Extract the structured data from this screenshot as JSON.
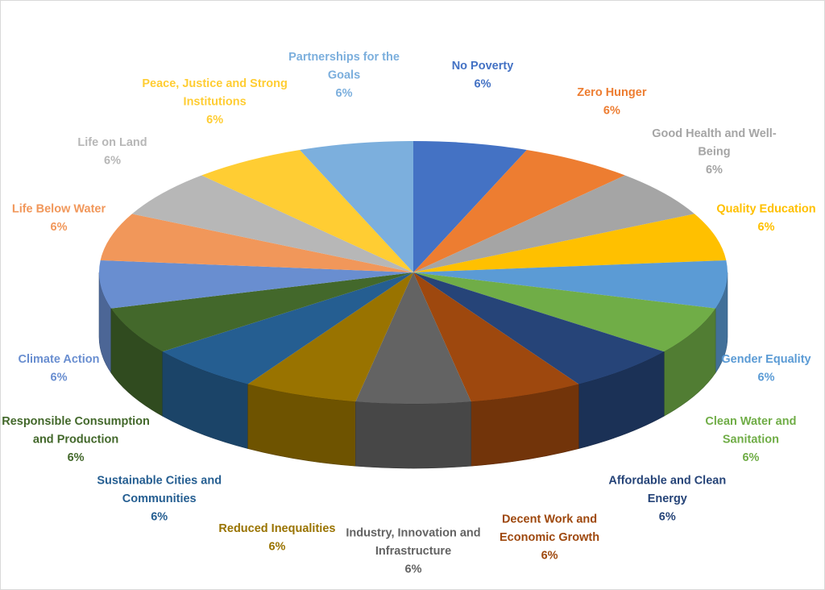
{
  "chart_data": {
    "type": "pie",
    "style": "3d-exploded-none",
    "categories": [
      "No Poverty",
      "Zero Hunger",
      "Good Health and Well-Being",
      "Quality Education",
      "Gender Equality",
      "Clean Water and Sanitation",
      "Affordable and Clean Energy",
      "Decent Work and Economic Growth",
      "Industry, Innovation and Infrastructure",
      "Reduced Inequalities",
      "Sustainable Cities and Communities",
      "Responsible Consumption and Production",
      "Climate Action",
      "Life Below Water",
      "Life on Land",
      "Peace, Justice and Strong Institutions",
      "Partnerships for the Goals"
    ],
    "values": [
      6,
      6,
      6,
      6,
      6,
      6,
      6,
      6,
      6,
      6,
      6,
      6,
      6,
      6,
      6,
      6,
      6
    ],
    "value_labels": [
      "6%",
      "6%",
      "6%",
      "6%",
      "6%",
      "6%",
      "6%",
      "6%",
      "6%",
      "6%",
      "6%",
      "6%",
      "6%",
      "6%",
      "6%",
      "6%",
      "6%"
    ],
    "label_lines": [
      [
        "No Poverty"
      ],
      [
        "Zero Hunger"
      ],
      [
        "Good Health and Well-",
        "Being"
      ],
      [
        "Quality Education"
      ],
      [
        "Gender Equality"
      ],
      [
        "Clean Water and",
        "Sanitation"
      ],
      [
        "Affordable and Clean",
        "Energy"
      ],
      [
        "Decent Work and",
        "Economic Growth"
      ],
      [
        "Industry, Innovation and",
        "Infrastructure"
      ],
      [
        "Reduced Inequalities"
      ],
      [
        "Sustainable Cities and",
        "Communities"
      ],
      [
        "Responsible Consumption",
        "and Production"
      ],
      [
        "Climate Action"
      ],
      [
        "Life Below Water"
      ],
      [
        "Life on Land"
      ],
      [
        "Peace, Justice and Strong",
        "Institutions"
      ],
      [
        "Partnerships for the",
        "Goals"
      ]
    ],
    "colors": [
      "#4472C4",
      "#ED7D31",
      "#A5A5A5",
      "#FFC000",
      "#5B9BD5",
      "#70AD47",
      "#264478",
      "#9E480E",
      "#636363",
      "#997300",
      "#255E91",
      "#43682B",
      "#698ED0",
      "#F1975A",
      "#B7B7B7",
      "#FFCD33",
      "#7CAFDD"
    ],
    "label_colors": [
      "#4472C4",
      "#ED7D31",
      "#A5A5A5",
      "#FFC000",
      "#5B9BD5",
      "#70AD47",
      "#264478",
      "#9E480E",
      "#636363",
      "#997300",
      "#255E91",
      "#43682B",
      "#698ED0",
      "#F1975A",
      "#B7B7B7",
      "#FFCD33",
      "#7CAFDD"
    ],
    "legend": "none",
    "title": ""
  }
}
